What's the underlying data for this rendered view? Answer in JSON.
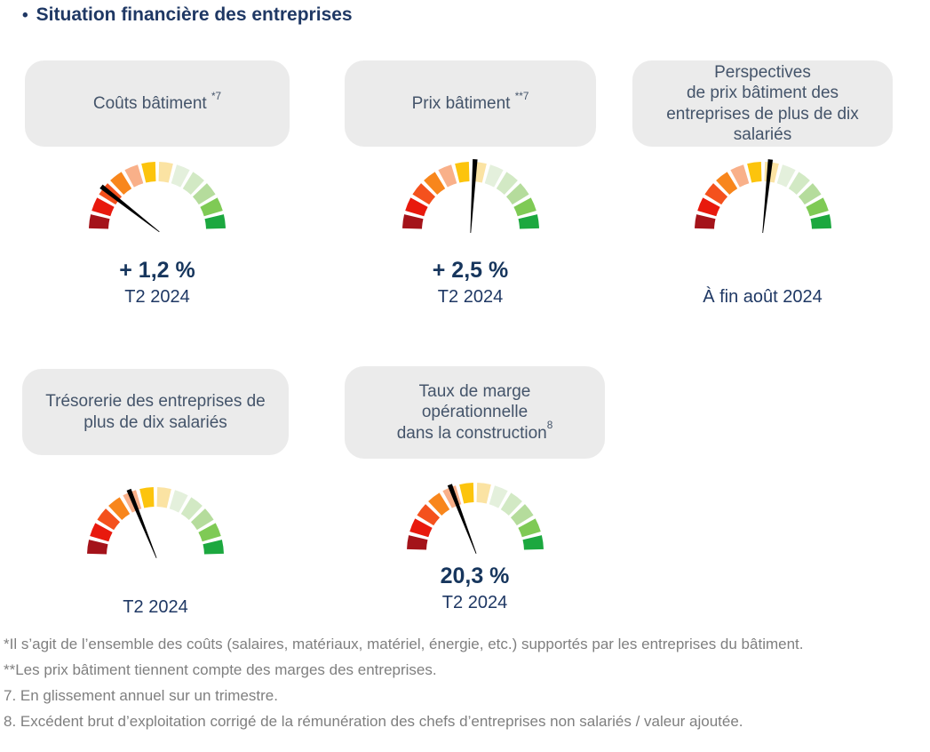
{
  "page_title": "Situation financière des entreprises",
  "bullet": "•",
  "colors": {
    "title_navy": "#1F3864",
    "value_navy": "#17365D",
    "header_text": "#44546A",
    "header_background": "#EBEBEB",
    "footnote_gray": "#7F7F7F",
    "needle_black": "#000000"
  },
  "gauge": {
    "segments": 12,
    "sweep_deg": 180,
    "segment_colors": [
      "#A4131A",
      "#E8190D",
      "#F4511D",
      "#F8861C",
      "#F9B089",
      "#FCC40D",
      "#FBE3A3",
      "#E4F0DC",
      "#D2E9C4",
      "#B5DC9C",
      "#7FCA55",
      "#1CA83F"
    ],
    "scale_note": "qualitative scale from red (unfavorable, left) to green (favorable, right), no tick labels"
  },
  "panels": [
    {
      "name": "couts-batiment",
      "header_lines": [
        "Coûts bâtiment"
      ],
      "header_sup": "*7",
      "header_sup_space": true,
      "value": "+ 1,2 %",
      "caption": "T2 2024",
      "needle_angle_deg": 142
    },
    {
      "name": "prix-batiment",
      "header_lines": [
        "Prix bâtiment"
      ],
      "header_sup": "**7",
      "header_sup_space": true,
      "value": "",
      "caption": "T2 2024",
      "needle_angle_deg": 86.5,
      "value_override": "+ 2,5 %"
    },
    {
      "name": "perspectives-prix-batiment",
      "header_lines": [
        "Perspectives",
        "de prix bâtiment des",
        "entreprises de plus de dix",
        "salariés"
      ],
      "header_sup": "",
      "header_sup_space": false,
      "value": "",
      "caption": "À fin août 2024",
      "needle_angle_deg": 84
    },
    {
      "name": "tresorerie-entreprises",
      "header_lines": [
        "Trésorerie des entreprises de",
        "plus de dix salariés"
      ],
      "header_sup": "",
      "header_sup_space": false,
      "value": "",
      "caption": "T2 2024",
      "needle_angle_deg": 112
    },
    {
      "name": "taux-de-marge",
      "header_lines": [
        "Taux de marge",
        "opérationnelle",
        "dans la construction"
      ],
      "header_sup": "8",
      "header_sup_space": false,
      "value": "20,3 %",
      "caption": "T2 2024",
      "needle_angle_deg": 111
    }
  ],
  "footnotes": [
    "*Il s’agit de l’ensemble des coûts (salaires, matériaux, matériel, énergie, etc.) supportés par les entreprises du bâtiment.",
    "**Les prix bâtiment tiennent compte des marges des entreprises.",
    "7. En glissement annuel sur un trimestre.",
    "8. Excédent brut d’exploitation corrigé de la rémunération des chefs d’entreprises non salariés / valeur ajoutée."
  ],
  "chart_data": [
    {
      "type": "gauge",
      "title": "Coûts bâtiment *7",
      "value": 1.2,
      "value_label": "+ 1,2 %",
      "period": "T2 2024",
      "needle_angle_deg": 142,
      "needle_zone": "red-orange (unfavorable side)",
      "scale": "qualitative red→green, 12 segments over 180°, no numeric axis"
    },
    {
      "type": "gauge",
      "title": "Prix bâtiment **7",
      "value": 2.5,
      "value_label": "+ 2,5 %",
      "period": "T2 2024",
      "needle_angle_deg": 86.5,
      "needle_zone": "center (yellow/neutral)",
      "scale": "qualitative red→green, 12 segments over 180°, no numeric axis"
    },
    {
      "type": "gauge",
      "title": "Perspectives de prix bâtiment des entreprises de plus de dix salariés",
      "value": null,
      "value_label": "",
      "period": "À fin août 2024",
      "needle_angle_deg": 84,
      "needle_zone": "center (yellow/neutral, slightly right)",
      "scale": "qualitative red→green, 12 segments over 180°, no numeric axis"
    },
    {
      "type": "gauge",
      "title": "Trésorerie des entreprises de plus de dix salariés",
      "value": null,
      "value_label": "",
      "period": "T2 2024",
      "needle_angle_deg": 112,
      "needle_zone": "orange (slightly unfavorable)",
      "scale": "qualitative red→green, 12 segments over 180°, no numeric axis"
    },
    {
      "type": "gauge",
      "title": "Taux de marge opérationnelle dans la construction 8",
      "value": 20.3,
      "value_label": "20,3 %",
      "period": "T2 2024",
      "needle_angle_deg": 111,
      "needle_zone": "orange (slightly unfavorable)",
      "scale": "qualitative red→green, 12 segments over 180°, no numeric axis"
    }
  ]
}
